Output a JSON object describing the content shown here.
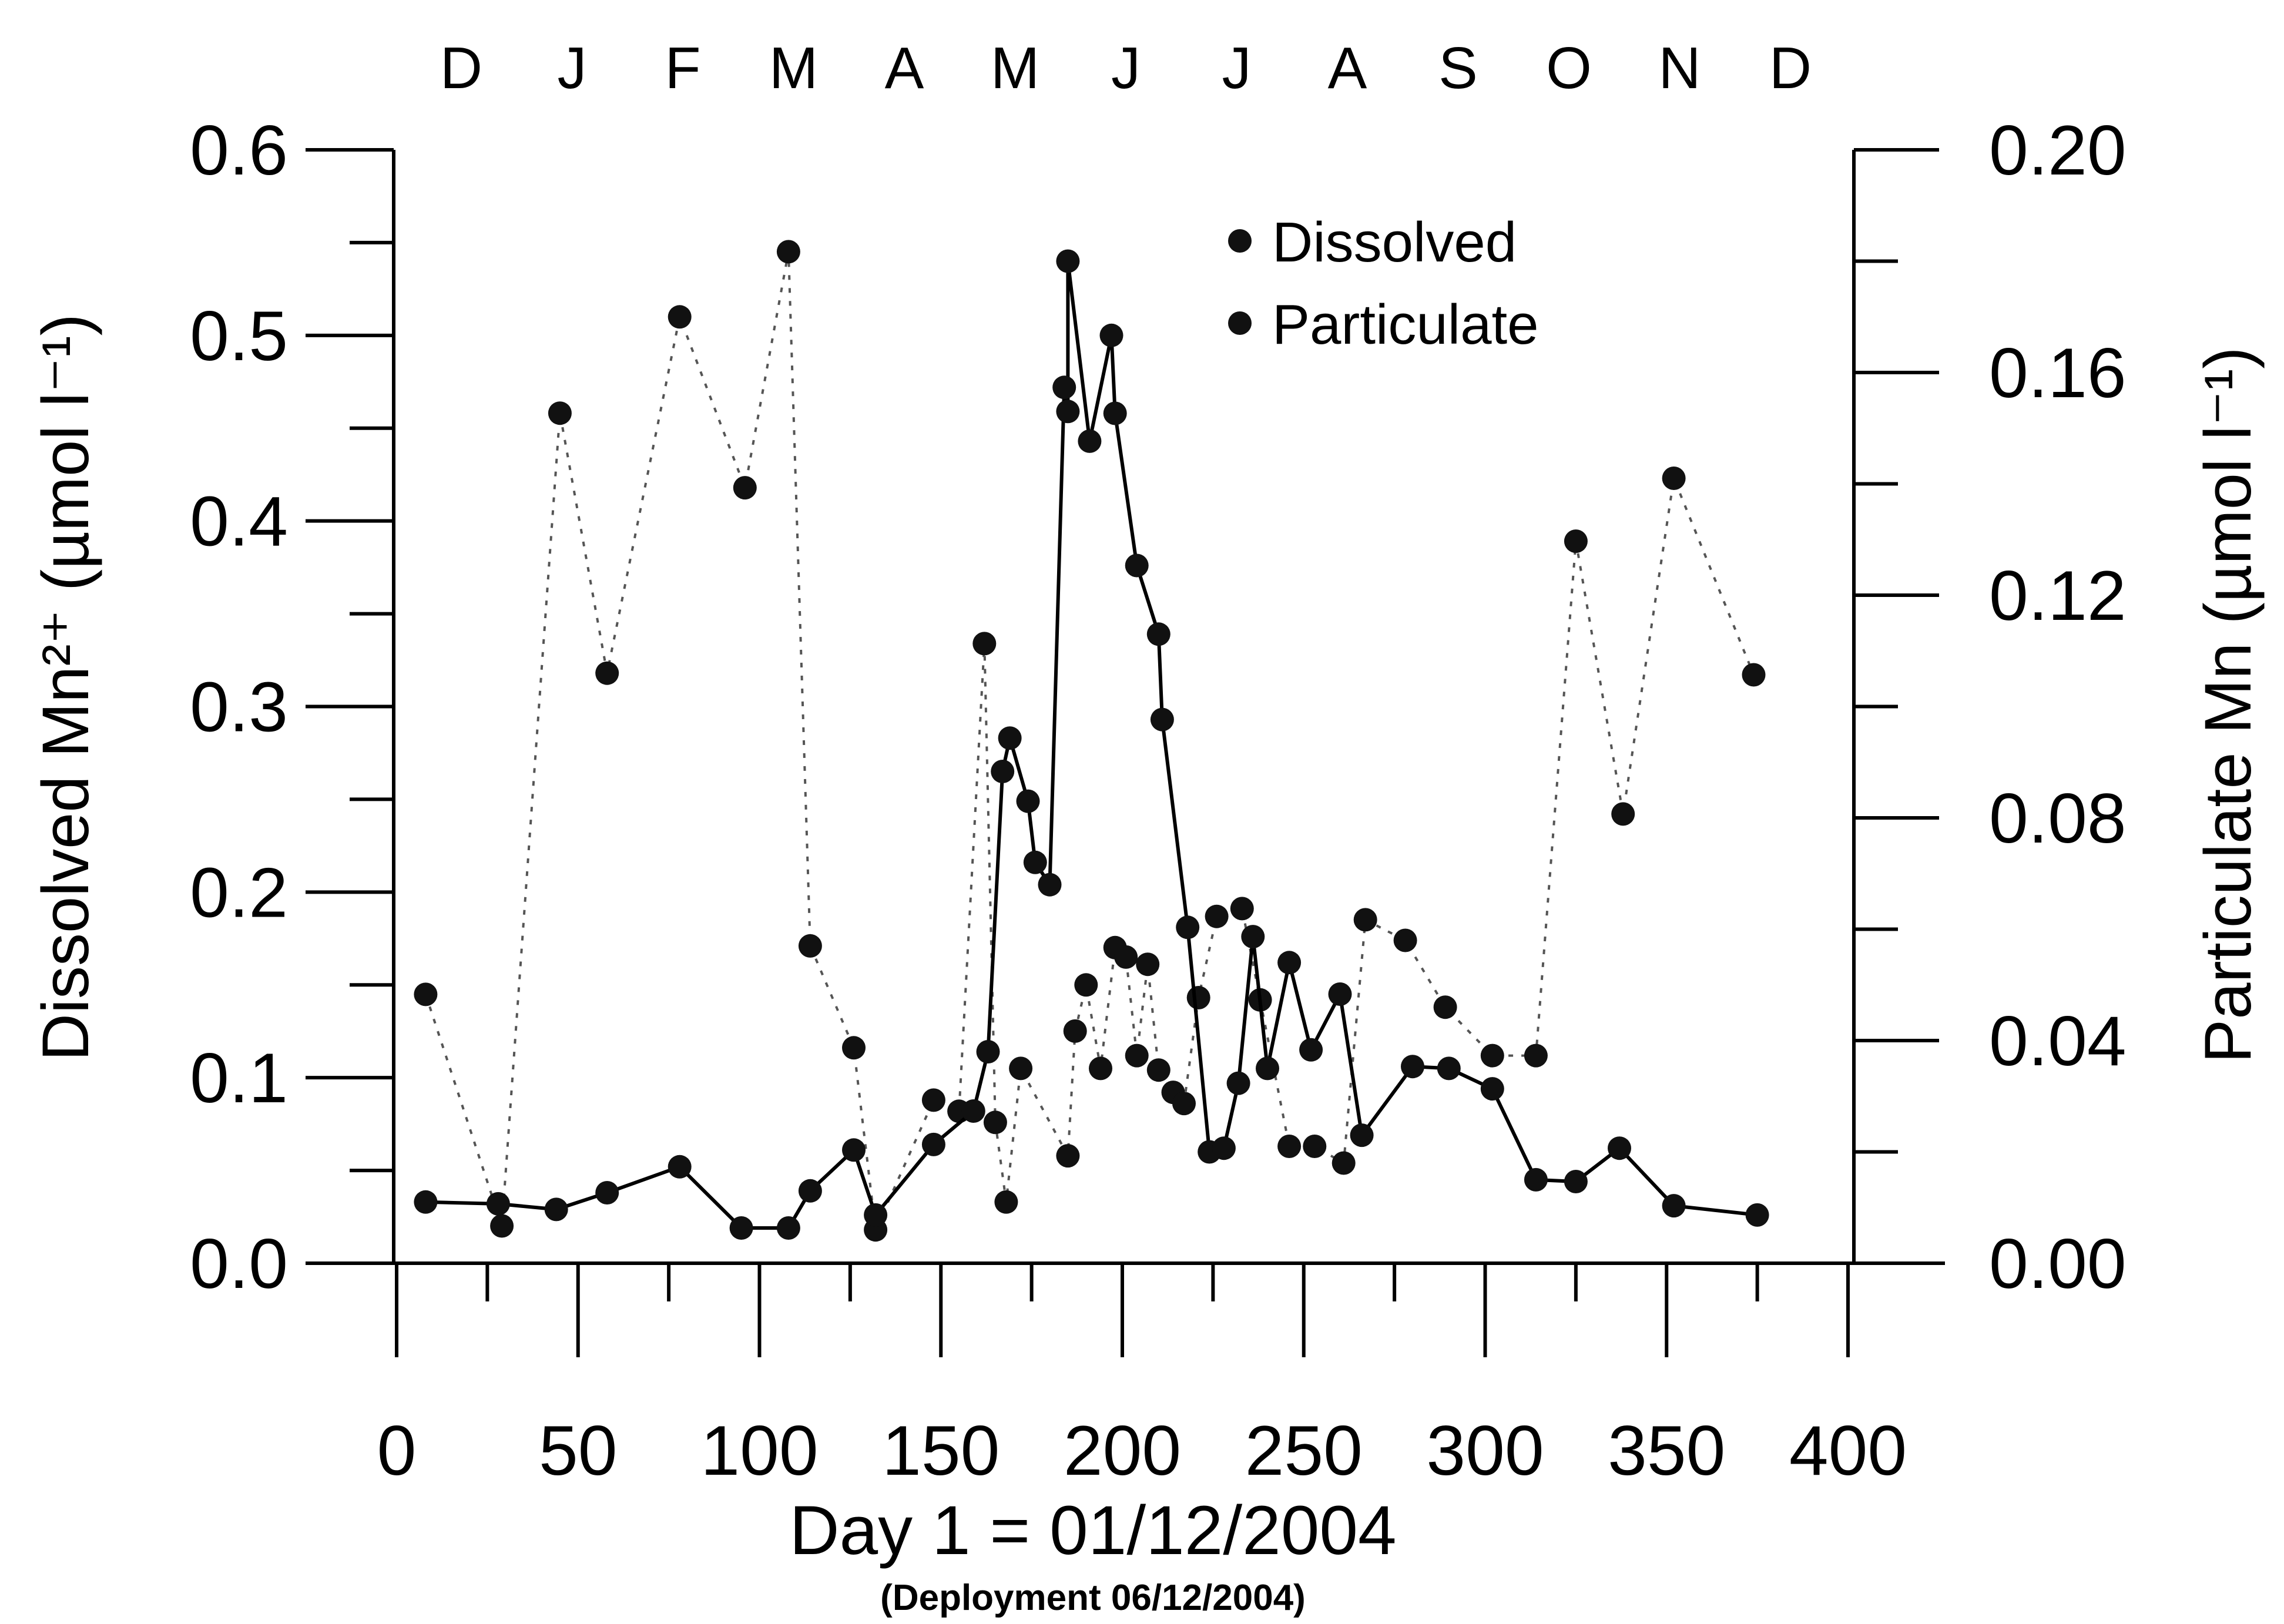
{
  "chart_data": {
    "type": "scatter",
    "title": "",
    "xlabel": "Day 1 = 01/12/2004",
    "xlabel_sub": "(Deployment 06/12/2004)",
    "ylabel_left": "Dissolved Mn²⁺ (µmol l⁻¹)",
    "ylabel_right": "Particulate Mn (µmol l⁻¹)",
    "xlim": [
      0,
      400
    ],
    "ylim_left": [
      0,
      0.6
    ],
    "ylim_right": [
      0,
      0.2
    ],
    "x_ticks": [
      "0",
      "50",
      "100",
      "150",
      "200",
      "250",
      "300",
      "350",
      "400"
    ],
    "y_left_ticks": [
      "0.0",
      "0.1",
      "0.2",
      "0.3",
      "0.4",
      "0.5",
      "0.6"
    ],
    "y_right_ticks": [
      "0.00",
      "0.04",
      "0.08",
      "0.12",
      "0.16",
      "0.20"
    ],
    "months": [
      "D",
      "J",
      "F",
      "M",
      "A",
      "M",
      "J",
      "J",
      "A",
      "S",
      "O",
      "N",
      "D"
    ],
    "grid": false,
    "legend_position": "top-center",
    "series": [
      {
        "name": "Dissolved",
        "axis": "left",
        "line": "solid",
        "points": [
          [
            8,
            0.033
          ],
          [
            28,
            0.032
          ],
          [
            44,
            0.029
          ],
          [
            58,
            0.038
          ],
          [
            78,
            0.052
          ],
          [
            95,
            0.019
          ],
          [
            108,
            0.019
          ],
          [
            114,
            0.039
          ],
          [
            126,
            0.061
          ],
          [
            132,
            0.026
          ],
          [
            148,
            0.064
          ],
          [
            159,
            0.082
          ],
          [
            163,
            0.114
          ],
          [
            167,
            0.265
          ],
          [
            169,
            0.283
          ],
          [
            174,
            0.249
          ],
          [
            176,
            0.216
          ],
          [
            180,
            0.204
          ],
          [
            184,
            0.472
          ],
          [
            185,
            0.459
          ],
          [
            185,
            0.54
          ],
          [
            191,
            0.443
          ],
          [
            197,
            0.5
          ],
          [
            198,
            0.458
          ],
          [
            204,
            0.376
          ],
          [
            210,
            0.339
          ],
          [
            211,
            0.293
          ],
          [
            218,
            0.181
          ],
          [
            224,
            0.06
          ],
          [
            228,
            0.062
          ],
          [
            232,
            0.097
          ],
          [
            236,
            0.176
          ],
          [
            240,
            0.105
          ],
          [
            246,
            0.162
          ],
          [
            252,
            0.115
          ],
          [
            260,
            0.145
          ],
          [
            266,
            0.069
          ],
          [
            280,
            0.106
          ],
          [
            290,
            0.105
          ],
          [
            302,
            0.094
          ],
          [
            314,
            0.045
          ],
          [
            325,
            0.044
          ],
          [
            337,
            0.062
          ],
          [
            352,
            0.031
          ],
          [
            375,
            0.026
          ]
        ]
      },
      {
        "name": "Particulate",
        "axis": "right",
        "line": "dotted",
        "points": [
          [
            8,
            0.0483
          ],
          [
            29,
            0.0067
          ],
          [
            45,
            0.1527
          ],
          [
            58,
            0.106
          ],
          [
            78,
            0.17
          ],
          [
            96,
            0.1393
          ],
          [
            108,
            0.1817
          ],
          [
            114,
            0.057
          ],
          [
            126,
            0.0387
          ],
          [
            132,
            0.006
          ],
          [
            148,
            0.0293
          ],
          [
            155,
            0.0273
          ],
          [
            162,
            0.1113
          ],
          [
            165,
            0.0253
          ],
          [
            168,
            0.011
          ],
          [
            172,
            0.035
          ],
          [
            185,
            0.0193
          ],
          [
            187,
            0.0417
          ],
          [
            190,
            0.05
          ],
          [
            194,
            0.035
          ],
          [
            198,
            0.0567
          ],
          [
            201,
            0.055
          ],
          [
            204,
            0.0373
          ],
          [
            207,
            0.0537
          ],
          [
            210,
            0.0347
          ],
          [
            214,
            0.0307
          ],
          [
            217,
            0.0287
          ],
          [
            221,
            0.0477
          ],
          [
            226,
            0.0623
          ],
          [
            233,
            0.0637
          ],
          [
            238,
            0.0473
          ],
          [
            246,
            0.021
          ],
          [
            253,
            0.021
          ],
          [
            261,
            0.018
          ],
          [
            267,
            0.0617
          ],
          [
            278,
            0.058
          ],
          [
            289,
            0.046
          ],
          [
            302,
            0.0373
          ],
          [
            314,
            0.0373
          ],
          [
            325,
            0.1297
          ],
          [
            338,
            0.0807
          ],
          [
            352,
            0.141
          ],
          [
            374,
            0.1057
          ]
        ]
      }
    ]
  }
}
